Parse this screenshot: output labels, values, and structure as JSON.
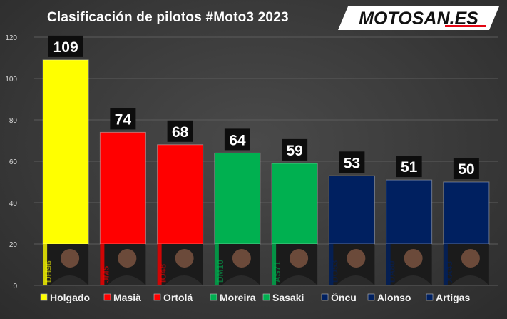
{
  "brand": {
    "logo_text": "MOTOSAN.ES",
    "colors": {
      "logo_bg": "#ffffff",
      "logo_text": "#111111",
      "logo_accent": "#e30613"
    }
  },
  "chart_data": {
    "type": "bar",
    "title": "Clasificación de pilotos #Moto3 2023",
    "xlabel": "",
    "ylabel": "",
    "ylim": [
      0,
      120
    ],
    "yticks": [
      0,
      20,
      40,
      60,
      80,
      100,
      120
    ],
    "grid": true,
    "legend_position": "bottom",
    "categories": [
      "Holgado",
      "Masià",
      "Ortolá",
      "Moreira",
      "Sasaki",
      "Öncu",
      "Alonso",
      "Artigas"
    ],
    "values": [
      109,
      74,
      68,
      64,
      59,
      53,
      51,
      50
    ],
    "colors": [
      "#ffff00",
      "#ff0000",
      "#ff0000",
      "#00b050",
      "#00b050",
      "#002060",
      "#002060",
      "#002060"
    ],
    "rider_numbers": [
      "DH96",
      "JM5",
      "IO48",
      "DM10",
      "AS71",
      "DO53",
      "DA80",
      "XA43"
    ]
  }
}
